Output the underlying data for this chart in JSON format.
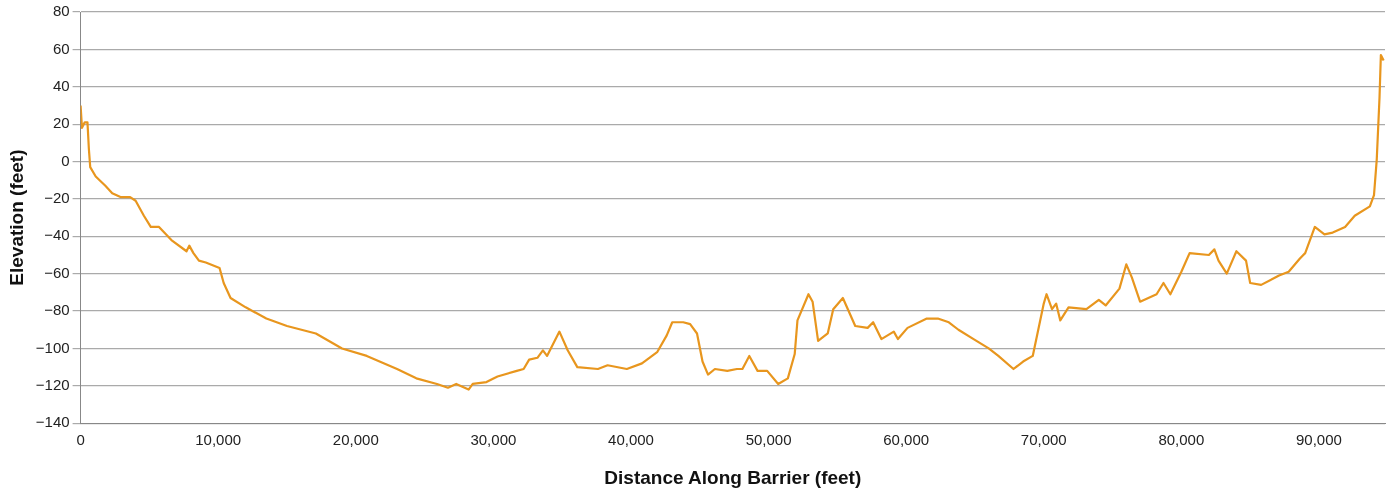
{
  "chart_data": {
    "type": "line",
    "xlabel": "Distance Along Barrier (feet)",
    "ylabel": "Elevation (feet)",
    "xlim": [
      0,
      94800
    ],
    "ylim": [
      -140,
      80
    ],
    "xticks": [
      {
        "value": 0,
        "label": "0"
      },
      {
        "value": 10000,
        "label": "10,000"
      },
      {
        "value": 20000,
        "label": "20,000"
      },
      {
        "value": 30000,
        "label": "30,000"
      },
      {
        "value": 40000,
        "label": "40,000"
      },
      {
        "value": 50000,
        "label": "50,000"
      },
      {
        "value": 60000,
        "label": "60,000"
      },
      {
        "value": 70000,
        "label": "70,000"
      },
      {
        "value": 80000,
        "label": "80,000"
      },
      {
        "value": 90000,
        "label": "90,000"
      }
    ],
    "yticks": [
      -140,
      -120,
      -100,
      -80,
      -60,
      -40,
      -20,
      0,
      20,
      40,
      60,
      80
    ],
    "grid": "y",
    "legend": false,
    "marker": "none",
    "line_style": "solid",
    "series": [
      {
        "color": "#e8961e",
        "x": [
          0,
          100,
          300,
          500,
          600,
          700,
          1100,
          1800,
          2300,
          2900,
          3600,
          4000,
          4600,
          5100,
          5700,
          6600,
          7700,
          7900,
          8200,
          8600,
          9100,
          10100,
          10400,
          10900,
          12000,
          13500,
          15000,
          17100,
          19000,
          20800,
          23000,
          24400,
          25900,
          26700,
          27300,
          28200,
          28500,
          29500,
          30300,
          31700,
          32200,
          32600,
          33200,
          33600,
          33900,
          34800,
          35400,
          36100,
          37600,
          38300,
          39700,
          40800,
          41900,
          42600,
          43000,
          43800,
          44300,
          44800,
          45200,
          45600,
          46100,
          47000,
          47700,
          48100,
          48600,
          49200,
          49900,
          50700,
          51400,
          51900,
          52100,
          52900,
          53200,
          53600,
          54300,
          54700,
          55400,
          56300,
          57200,
          57600,
          58200,
          59100,
          59400,
          60100,
          61500,
          62300,
          63100,
          63800,
          64900,
          66000,
          66700,
          67800,
          68500,
          69200,
          70000,
          70200,
          70600,
          70900,
          71200,
          71800,
          73100,
          74000,
          74500,
          75500,
          76000,
          76400,
          77000,
          78200,
          78700,
          79200,
          80000,
          80600,
          82000,
          82400,
          82700,
          83300,
          84000,
          84700,
          85000,
          85800,
          87100,
          87800,
          88600,
          89000,
          89700,
          90400,
          91000,
          91900,
          92600,
          93700,
          94000,
          94200,
          94400,
          94500,
          94700
        ],
        "values": [
          30,
          18,
          21,
          21,
          7,
          -3,
          -8,
          -13,
          -17,
          -19,
          -19,
          -21,
          -29,
          -35,
          -35,
          -42,
          -48,
          -45,
          -49,
          -53,
          -54,
          -57,
          -65,
          -73,
          -78,
          -84,
          -88,
          -92,
          -100,
          -104,
          -111,
          -116,
          -119,
          -121,
          -119,
          -122,
          -119,
          -118,
          -115,
          -112,
          -111,
          -106,
          -105,
          -101,
          -104,
          -91,
          -101,
          -110,
          -111,
          -109,
          -111,
          -108,
          -102,
          -93,
          -86,
          -86,
          -87,
          -92,
          -107,
          -114,
          -111,
          -112,
          -111,
          -111,
          -104,
          -112,
          -112,
          -119,
          -116,
          -103,
          -85,
          -71,
          -75,
          -96,
          -92,
          -79,
          -73,
          -88,
          -89,
          -86,
          -95,
          -91,
          -95,
          -89,
          -84,
          -84,
          -86,
          -90,
          -95,
          -100,
          -104,
          -111,
          -107,
          -104,
          -76,
          -71,
          -79,
          -76,
          -85,
          -78,
          -79,
          -74,
          -77,
          -68,
          -55,
          -62,
          -75,
          -71,
          -65,
          -71,
          -59,
          -49,
          -50,
          -47,
          -53,
          -60,
          -48,
          -53,
          -65,
          -66,
          -61,
          -59,
          -52,
          -49,
          -35,
          -39,
          -38,
          -35,
          -29,
          -24,
          -18,
          1,
          34,
          57,
          54
        ]
      }
    ]
  }
}
